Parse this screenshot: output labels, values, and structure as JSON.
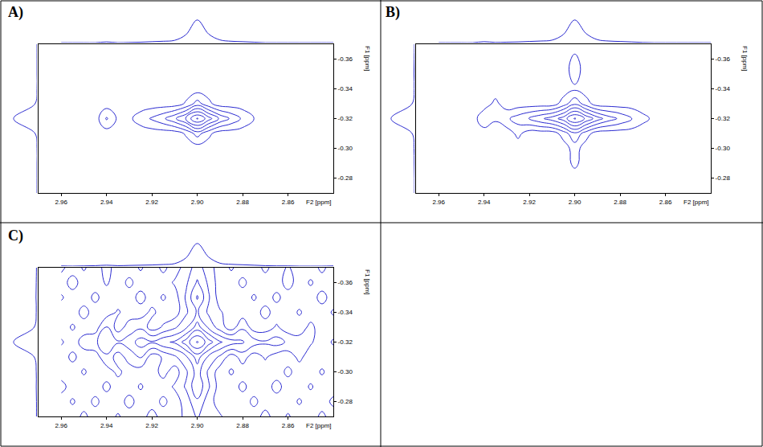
{
  "chart_data": [
    {
      "type": "contour",
      "title": "A)",
      "x_label": "F2 [ppm]",
      "y_label": "F1 [ppm]",
      "color": "#2a2ad0",
      "grid": false,
      "xlim": [
        2.97,
        2.84
      ],
      "ylim": [
        -0.27,
        -0.37
      ],
      "xticks": [
        2.96,
        2.94,
        2.92,
        {
          "value": 2.9,
          "label": "2.90"
        },
        2.88,
        2.86
      ],
      "yticks": [
        -0.36,
        -0.34,
        -0.32,
        {
          "value": -0.3,
          "label": "-0.30"
        },
        -0.28
      ],
      "x": [
        2.96,
        2.955,
        2.95,
        2.945,
        2.94,
        2.935,
        2.93,
        2.925,
        2.92,
        2.915,
        2.91,
        2.905,
        2.9,
        2.895,
        2.89,
        2.885,
        2.88,
        2.875,
        2.87,
        2.865,
        2.86,
        2.855,
        2.85,
        2.845,
        2.84
      ],
      "y": [
        -0.37,
        -0.36,
        -0.35,
        -0.34,
        -0.33,
        -0.32,
        -0.31,
        -0.3,
        -0.29,
        -0.28,
        -0.27
      ],
      "levels": {
        "start": 8,
        "end": 98,
        "size": 15
      },
      "z": [
        [
          0,
          0,
          0,
          0,
          0,
          0,
          0,
          0,
          0,
          0,
          0,
          0,
          0,
          0,
          0,
          0,
          0,
          0,
          0,
          0,
          0,
          0,
          0,
          0,
          0
        ],
        [
          0,
          0,
          0,
          0,
          0,
          0,
          0,
          0,
          0,
          0,
          0,
          0,
          0,
          0,
          0,
          0,
          0,
          0,
          0,
          0,
          0,
          0,
          0,
          0,
          0
        ],
        [
          0,
          0,
          0,
          0,
          0,
          0,
          0,
          0,
          0,
          0,
          0,
          0,
          0,
          0,
          0,
          0,
          0,
          0,
          0,
          0,
          0,
          0,
          0,
          0,
          0
        ],
        [
          0,
          0,
          0,
          0,
          0,
          0,
          0,
          0,
          0,
          0,
          0,
          0,
          0,
          0,
          0,
          0,
          0,
          0,
          0,
          0,
          0,
          0,
          0,
          0,
          0
        ],
        [
          0,
          0,
          0,
          0,
          0,
          0,
          0,
          0,
          0,
          0,
          0,
          10,
          30,
          12,
          0,
          0,
          0,
          0,
          0,
          0,
          0,
          0,
          0,
          0,
          0
        ],
        [
          0,
          0,
          0,
          0,
          25,
          5,
          5,
          15,
          25,
          35,
          50,
          70,
          100,
          75,
          50,
          35,
          20,
          8,
          0,
          0,
          0,
          0,
          0,
          0,
          0
        ],
        [
          0,
          0,
          0,
          0,
          0,
          0,
          0,
          0,
          0,
          0,
          0,
          10,
          30,
          12,
          0,
          0,
          0,
          0,
          0,
          0,
          0,
          0,
          0,
          0,
          0
        ],
        [
          0,
          0,
          0,
          0,
          0,
          0,
          0,
          0,
          0,
          0,
          0,
          0,
          0,
          0,
          0,
          0,
          0,
          0,
          0,
          0,
          0,
          0,
          0,
          0,
          0
        ],
        [
          0,
          0,
          0,
          0,
          0,
          0,
          0,
          0,
          0,
          0,
          0,
          0,
          0,
          0,
          0,
          0,
          0,
          0,
          0,
          0,
          0,
          0,
          0,
          0,
          0
        ],
        [
          0,
          0,
          0,
          0,
          0,
          0,
          0,
          0,
          0,
          0,
          0,
          0,
          0,
          0,
          0,
          0,
          0,
          0,
          0,
          0,
          0,
          0,
          0,
          0,
          0
        ],
        [
          0,
          0,
          0,
          0,
          0,
          0,
          0,
          0,
          0,
          0,
          0,
          0,
          0,
          0,
          0,
          0,
          0,
          0,
          0,
          0,
          0,
          0,
          0,
          0,
          0
        ]
      ],
      "projection_lim": [
        0,
        110
      ],
      "f2_projection": [
        0,
        0,
        0,
        0,
        3,
        0,
        1,
        2,
        4,
        6,
        10,
        35,
        100,
        38,
        12,
        6,
        4,
        2,
        0,
        0,
        0,
        0,
        0,
        0,
        0
      ],
      "f1_projection": [
        0,
        0,
        0,
        0,
        8,
        100,
        8,
        0,
        0,
        0,
        0
      ]
    },
    {
      "type": "contour",
      "title": "B)",
      "x_label": "F2 [ppm]",
      "y_label": "F1 [ppm]",
      "color": "#2a2ad0",
      "grid": false,
      "xlim": [
        2.97,
        2.84
      ],
      "ylim": [
        -0.27,
        -0.37
      ],
      "xticks": [
        2.96,
        2.94,
        2.92,
        {
          "value": 2.9,
          "label": "2.90"
        },
        2.88,
        2.86
      ],
      "yticks": [
        -0.36,
        -0.34,
        -0.32,
        {
          "value": -0.3,
          "label": "-0.30"
        },
        -0.28
      ],
      "x": [
        2.96,
        2.955,
        2.95,
        2.945,
        2.94,
        2.935,
        2.93,
        2.925,
        2.92,
        2.915,
        2.91,
        2.905,
        2.9,
        2.895,
        2.89,
        2.885,
        2.88,
        2.875,
        2.87,
        2.865,
        2.86,
        2.855,
        2.85,
        2.845,
        2.84
      ],
      "y": [
        -0.37,
        -0.36,
        -0.35,
        -0.34,
        -0.33,
        -0.32,
        -0.31,
        -0.3,
        -0.29,
        -0.28,
        -0.27
      ],
      "levels": {
        "start": 8,
        "end": 98,
        "size": 15
      },
      "z": [
        [
          0,
          0,
          0,
          0,
          0,
          0,
          0,
          0,
          0,
          0,
          0,
          0,
          0,
          0,
          0,
          0,
          0,
          0,
          0,
          0,
          0,
          0,
          0,
          0,
          0
        ],
        [
          0,
          0,
          0,
          0,
          0,
          0,
          0,
          0,
          0,
          0,
          0,
          0,
          12,
          0,
          0,
          0,
          0,
          0,
          0,
          0,
          0,
          0,
          0,
          0,
          0
        ],
        [
          0,
          0,
          0,
          0,
          0,
          0,
          0,
          0,
          0,
          0,
          0,
          0,
          15,
          0,
          0,
          0,
          0,
          0,
          0,
          0,
          0,
          0,
          0,
          0,
          0
        ],
        [
          0,
          0,
          0,
          0,
          0,
          0,
          0,
          0,
          0,
          0,
          0,
          0,
          5,
          0,
          0,
          0,
          0,
          0,
          0,
          0,
          0,
          0,
          0,
          0,
          0
        ],
        [
          0,
          0,
          0,
          0,
          0,
          12,
          0,
          0,
          0,
          0,
          0,
          15,
          35,
          15,
          0,
          0,
          0,
          0,
          0,
          0,
          0,
          0,
          0,
          0,
          0
        ],
        [
          0,
          0,
          0,
          0,
          20,
          10,
          20,
          30,
          40,
          50,
          60,
          75,
          100,
          80,
          60,
          45,
          35,
          25,
          12,
          5,
          0,
          0,
          0,
          0,
          0
        ],
        [
          0,
          0,
          0,
          0,
          0,
          0,
          0,
          12,
          0,
          0,
          0,
          15,
          35,
          15,
          0,
          0,
          0,
          0,
          0,
          0,
          0,
          0,
          0,
          0,
          0
        ],
        [
          0,
          0,
          0,
          0,
          0,
          0,
          0,
          0,
          0,
          0,
          0,
          0,
          15,
          0,
          0,
          0,
          0,
          0,
          0,
          0,
          0,
          0,
          0,
          0,
          0
        ],
        [
          0,
          0,
          0,
          0,
          0,
          0,
          0,
          0,
          0,
          0,
          0,
          0,
          12,
          0,
          0,
          0,
          0,
          0,
          0,
          0,
          0,
          0,
          0,
          0,
          0
        ],
        [
          0,
          0,
          0,
          0,
          0,
          0,
          0,
          0,
          0,
          0,
          0,
          0,
          0,
          0,
          0,
          0,
          0,
          0,
          0,
          0,
          0,
          0,
          0,
          0,
          0
        ],
        [
          0,
          0,
          0,
          0,
          0,
          0,
          0,
          0,
          0,
          0,
          0,
          0,
          0,
          0,
          0,
          0,
          0,
          0,
          0,
          0,
          0,
          0,
          0,
          0,
          0
        ]
      ],
      "projection_lim": [
        0,
        110
      ],
      "f2_projection": [
        0,
        0,
        0,
        0,
        4,
        1,
        2,
        3,
        5,
        7,
        11,
        36,
        100,
        40,
        13,
        7,
        5,
        3,
        1,
        0,
        0,
        0,
        0,
        0,
        0
      ],
      "f1_projection": [
        0,
        1,
        2,
        1,
        10,
        100,
        10,
        2,
        1,
        0,
        0
      ]
    },
    {
      "type": "contour",
      "title": "C)",
      "x_label": "F2 [ppm]",
      "y_label": "F1 [ppm]",
      "color": "#2a2ad0",
      "grid": false,
      "xlim": [
        2.97,
        2.84
      ],
      "ylim": [
        -0.27,
        -0.37
      ],
      "xticks": [
        2.96,
        2.94,
        2.92,
        {
          "value": 2.9,
          "label": "2.90"
        },
        2.88,
        2.86
      ],
      "yticks": [
        -0.36,
        -0.34,
        -0.32,
        {
          "value": -0.3,
          "label": "-0.30"
        },
        -0.28
      ],
      "x": [
        2.96,
        2.955,
        2.95,
        2.945,
        2.94,
        2.935,
        2.93,
        2.925,
        2.92,
        2.915,
        2.91,
        2.905,
        2.9,
        2.895,
        2.89,
        2.885,
        2.88,
        2.875,
        2.87,
        2.865,
        2.86,
        2.855,
        2.85,
        2.845,
        2.84
      ],
      "y": [
        -0.37,
        -0.36,
        -0.35,
        -0.34,
        -0.33,
        -0.32,
        -0.31,
        -0.3,
        -0.29,
        -0.28,
        -0.27
      ],
      "levels": {
        "start": 8,
        "end": 98,
        "size": 15
      },
      "z": [
        [
          12,
          0,
          10,
          0,
          14,
          0,
          0,
          10,
          0,
          12,
          0,
          15,
          30,
          15,
          0,
          10,
          0,
          0,
          12,
          0,
          10,
          0,
          0,
          12,
          0
        ],
        [
          0,
          15,
          0,
          0,
          10,
          0,
          12,
          0,
          0,
          0,
          10,
          20,
          40,
          20,
          0,
          0,
          12,
          0,
          0,
          0,
          15,
          0,
          10,
          0,
          0
        ],
        [
          10,
          0,
          0,
          12,
          0,
          0,
          0,
          14,
          0,
          10,
          0,
          25,
          55,
          25,
          0,
          0,
          0,
          10,
          0,
          12,
          0,
          0,
          0,
          14,
          0
        ],
        [
          0,
          0,
          14,
          0,
          0,
          10,
          0,
          0,
          12,
          0,
          0,
          20,
          40,
          20,
          10,
          0,
          0,
          0,
          14,
          0,
          0,
          10,
          0,
          0,
          10
        ],
        [
          0,
          10,
          0,
          0,
          25,
          0,
          15,
          20,
          0,
          10,
          20,
          35,
          60,
          35,
          15,
          0,
          20,
          0,
          0,
          10,
          0,
          0,
          12,
          0,
          0
        ],
        [
          10,
          0,
          15,
          20,
          35,
          25,
          30,
          45,
          40,
          50,
          55,
          75,
          100,
          75,
          55,
          45,
          40,
          30,
          25,
          30,
          20,
          15,
          10,
          0,
          10
        ],
        [
          0,
          12,
          0,
          0,
          20,
          0,
          15,
          25,
          0,
          10,
          20,
          35,
          60,
          35,
          20,
          0,
          15,
          0,
          10,
          0,
          0,
          12,
          0,
          0,
          0
        ],
        [
          0,
          0,
          10,
          0,
          0,
          12,
          0,
          0,
          0,
          14,
          0,
          20,
          45,
          20,
          0,
          10,
          0,
          0,
          0,
          0,
          12,
          0,
          0,
          10,
          0
        ],
        [
          14,
          0,
          0,
          0,
          12,
          0,
          0,
          10,
          0,
          0,
          10,
          25,
          50,
          25,
          0,
          0,
          12,
          0,
          0,
          14,
          0,
          0,
          10,
          0,
          0
        ],
        [
          0,
          10,
          0,
          12,
          0,
          0,
          14,
          0,
          0,
          12,
          0,
          15,
          35,
          15,
          0,
          0,
          0,
          12,
          0,
          0,
          0,
          10,
          0,
          0,
          12
        ],
        [
          0,
          0,
          12,
          0,
          0,
          10,
          0,
          0,
          15,
          0,
          0,
          12,
          25,
          12,
          10,
          0,
          0,
          0,
          14,
          0,
          10,
          0,
          0,
          12,
          0
        ]
      ],
      "projection_lim": [
        0,
        110
      ],
      "f2_projection": [
        1,
        0,
        1,
        2,
        4,
        2,
        3,
        4,
        5,
        7,
        11,
        36,
        100,
        40,
        13,
        8,
        6,
        4,
        2,
        1,
        1,
        0,
        0,
        0,
        1
      ],
      "f1_projection": [
        2,
        3,
        4,
        3,
        12,
        100,
        12,
        3,
        3,
        2,
        2
      ]
    }
  ]
}
